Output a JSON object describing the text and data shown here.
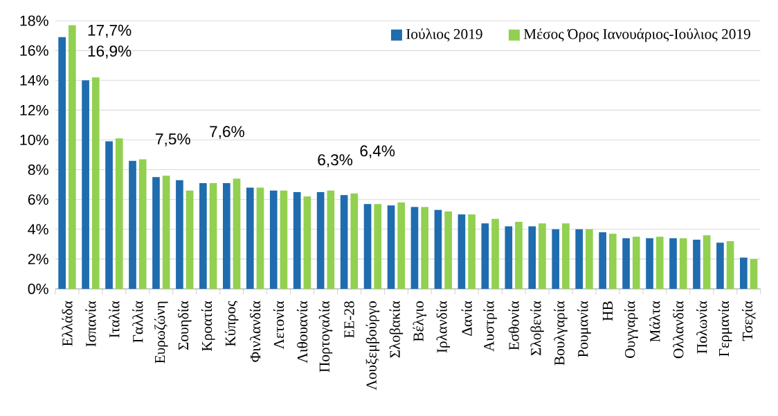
{
  "chart_data": {
    "type": "bar",
    "categories": [
      "Ελλάδα",
      "Ισπανία",
      "Ιταλία",
      "Γαλλία",
      "Ευρωζώνη",
      "Σουηδία",
      "Κροατία",
      "Κύπρος",
      "Φινλανδία",
      "Λετονία",
      "Λιθουανία",
      "Πορτογαλία",
      "ΕΕ-28",
      "Λουξεμβούργο",
      "Σλοβακία",
      "Βέλγιο",
      "Ιρλανδία",
      "Δανία",
      "Αυστρία",
      "Εσθονία",
      "Σλοβενία",
      "Βουλγαρία",
      "Ρουμανία",
      "ΗΒ",
      "Ουγγαρία",
      "Μάλτα",
      "Ολλανδία",
      "Πολωνία",
      "Γερμανία",
      "Τσεχία"
    ],
    "series": [
      {
        "name": "Ιούλιος 2019",
        "color": "#1f6cae",
        "values": [
          16.9,
          14.0,
          9.9,
          8.6,
          7.5,
          7.3,
          7.1,
          7.1,
          6.8,
          6.6,
          6.5,
          6.5,
          6.3,
          5.7,
          5.6,
          5.5,
          5.3,
          5.0,
          4.4,
          4.2,
          4.2,
          4.0,
          4.0,
          3.8,
          3.4,
          3.4,
          3.4,
          3.3,
          3.1,
          2.1
        ]
      },
      {
        "name": "Μέσος Όρος Ιανουάριος-Ιούλιος 2019",
        "color": "#92d050",
        "values": [
          17.7,
          14.2,
          10.1,
          8.7,
          7.6,
          6.6,
          7.1,
          7.4,
          6.8,
          6.6,
          6.2,
          6.6,
          6.4,
          5.7,
          5.8,
          5.5,
          5.2,
          5.0,
          4.7,
          4.5,
          4.4,
          4.4,
          4.0,
          3.7,
          3.5,
          3.5,
          3.4,
          3.6,
          3.2,
          2.0
        ]
      }
    ],
    "ylim": [
      0,
      18
    ],
    "yticks": [
      {
        "value": 0,
        "label": "0%"
      },
      {
        "value": 2,
        "label": "2%"
      },
      {
        "value": 4,
        "label": "4%"
      },
      {
        "value": 6,
        "label": "6%"
      },
      {
        "value": 8,
        "label": "8%"
      },
      {
        "value": 10,
        "label": "10%"
      },
      {
        "value": 12,
        "label": "12%"
      },
      {
        "value": 14,
        "label": "14%"
      },
      {
        "value": 16,
        "label": "16%"
      },
      {
        "value": 18,
        "label": "18%"
      }
    ],
    "grid": "y",
    "legend": "top right",
    "annotations": [
      "17,7%",
      "16,9%",
      "7,5%",
      "7,6%",
      "6,3%",
      "6,4%"
    ]
  }
}
